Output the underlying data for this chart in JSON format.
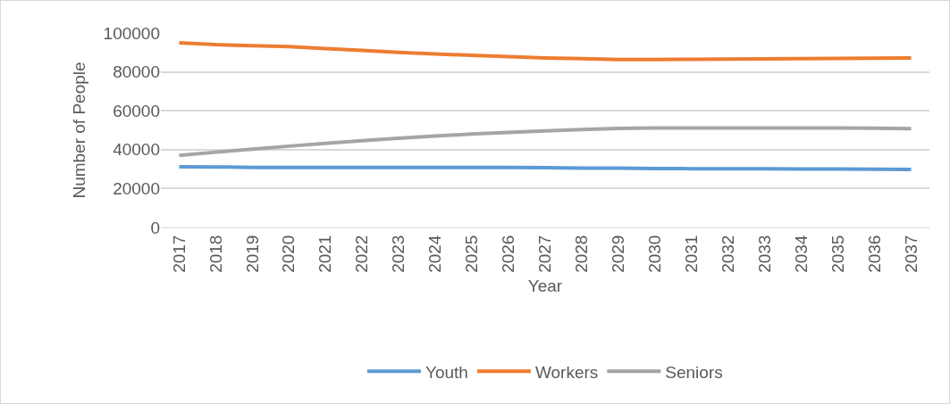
{
  "chart_data": {
    "type": "line",
    "xlabel": "Year",
    "ylabel": "Number of People",
    "categories": [
      "2017",
      "2018",
      "2019",
      "2020",
      "2021",
      "2022",
      "2023",
      "2024",
      "2025",
      "2026",
      "2027",
      "2028",
      "2029",
      "2030",
      "2031",
      "2032",
      "2033",
      "2034",
      "2035",
      "2036",
      "2037"
    ],
    "series": [
      {
        "name": "Youth",
        "color": "#5b9bd5",
        "values": [
          31200,
          31100,
          30900,
          30800,
          30800,
          30800,
          30800,
          30800,
          30900,
          30900,
          30700,
          30500,
          30500,
          30300,
          30200,
          30200,
          30200,
          30100,
          30000,
          29900,
          29800
        ]
      },
      {
        "name": "Workers",
        "color": "#ed7d31",
        "values": [
          95000,
          94000,
          93500,
          93000,
          92000,
          91000,
          90000,
          89200,
          88500,
          87800,
          87200,
          86800,
          86400,
          86300,
          86500,
          86600,
          86700,
          86800,
          86900,
          87000,
          87200
        ]
      },
      {
        "name": "Seniors",
        "color": "#a5a5a5",
        "values": [
          37000,
          38700,
          40300,
          41800,
          43200,
          44600,
          45900,
          47000,
          48000,
          48900,
          49700,
          50300,
          50900,
          51100,
          51200,
          51200,
          51200,
          51100,
          51100,
          51000,
          50800
        ]
      }
    ],
    "ylim": [
      0,
      100000
    ],
    "yticks": [
      0,
      20000,
      40000,
      60000,
      80000,
      100000
    ],
    "grid": "y",
    "legend": "bottom",
    "marker": "none",
    "line_style": "solid"
  }
}
